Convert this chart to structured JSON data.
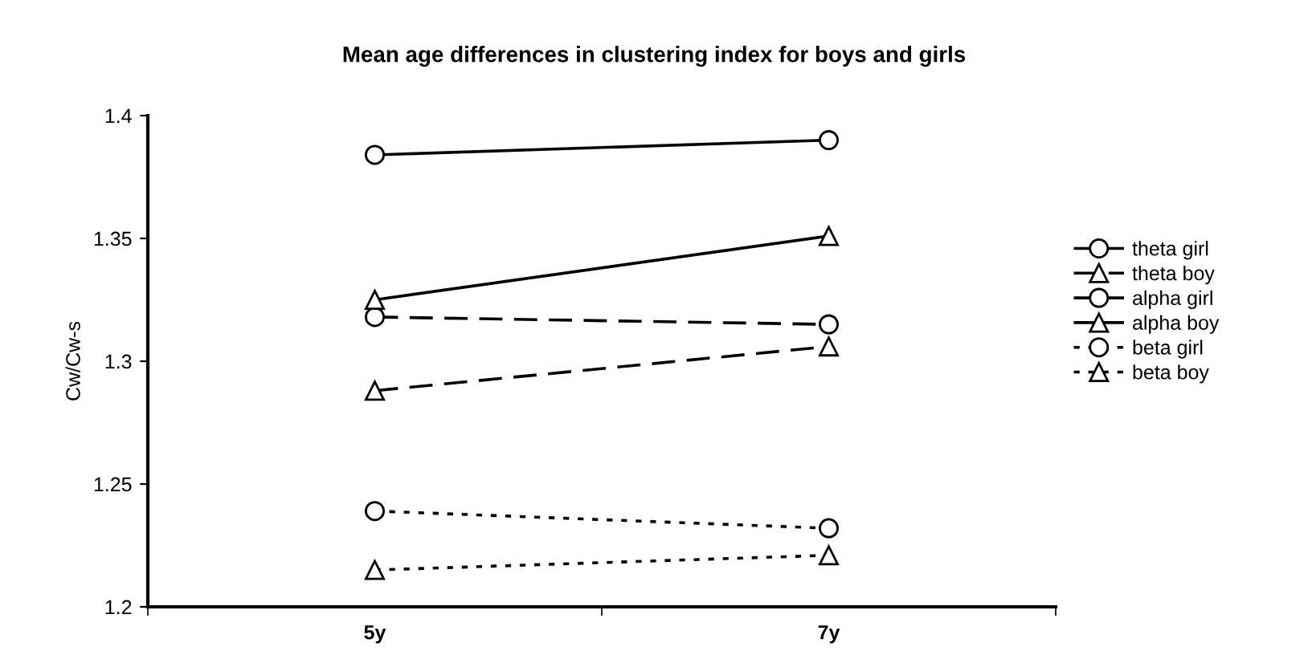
{
  "chart_data": {
    "type": "line",
    "title": "Mean age differences in clustering index for boys and girls",
    "ylabel": "Cw/Cw-s",
    "categories": [
      "5y",
      "7y"
    ],
    "series": [
      {
        "name": "theta girl",
        "color": "#000000",
        "marker": "circle",
        "line_style": "dashed",
        "values": [
          1.318,
          1.315
        ]
      },
      {
        "name": "theta boy",
        "color": "#000000",
        "marker": "triangle",
        "line_style": "dashed",
        "values": [
          1.288,
          1.306
        ]
      },
      {
        "name": "alpha girl",
        "color": "#000000",
        "marker": "circle",
        "line_style": "solid",
        "values": [
          1.384,
          1.39
        ]
      },
      {
        "name": "alpha boy",
        "color": "#000000",
        "marker": "triangle",
        "line_style": "solid",
        "values": [
          1.325,
          1.351
        ]
      },
      {
        "name": "beta girl",
        "color": "#000000",
        "marker": "circle",
        "line_style": "dotted",
        "values": [
          1.239,
          1.232
        ]
      },
      {
        "name": "beta boy",
        "color": "#000000",
        "marker": "triangle",
        "line_style": "dotted",
        "values": [
          1.215,
          1.221
        ]
      }
    ],
    "ylim": [
      1.2,
      1.4
    ],
    "yticks": [
      1.2,
      1.25,
      1.3,
      1.35,
      1.4
    ],
    "grid": false,
    "legend": "right"
  }
}
